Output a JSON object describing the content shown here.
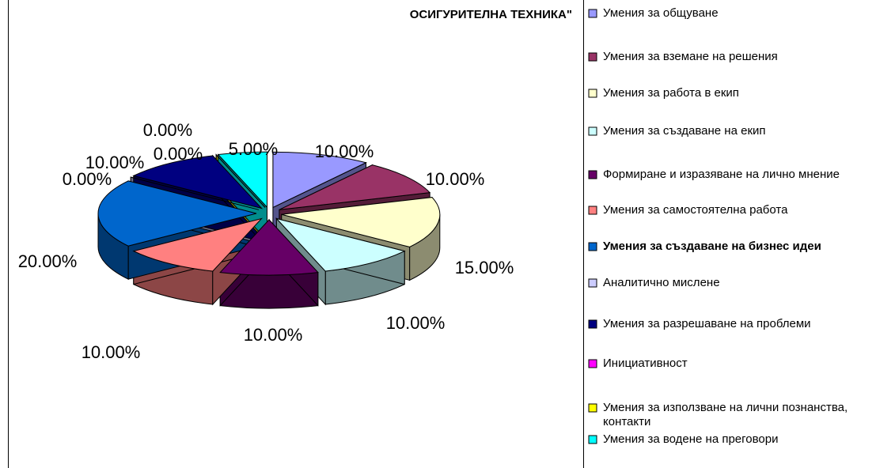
{
  "chart_data": {
    "type": "pie3d",
    "title": "ОСИГУРИТЕЛНА ТЕХНИКА\"",
    "categories": [
      "Умения за общуване",
      "Умения за вземане на решения",
      "Умения за работа в екип",
      "Умения за създаване на екип",
      "Формиране и изразяване на лично мнение",
      "Умения за самостоятелна работа",
      "Умения за създаване на бизнес идеи",
      "Аналитично мислене",
      "Умения за разрешаване на проблеми",
      "Инициативност",
      "Умения за използване на лични познанства, контакти",
      "Умения за водене на преговори"
    ],
    "values": [
      10,
      10,
      15,
      10,
      10,
      10,
      20,
      0,
      10,
      0,
      0,
      5
    ],
    "value_labels": [
      "10.00%",
      "10.00%",
      "15.00%",
      "10.00%",
      "10.00%",
      "10.00%",
      "20.00%",
      "0.00%",
      "10.00%",
      "0.00%",
      "0.00%",
      "5.00%"
    ],
    "colors": [
      "#9999ff",
      "#993366",
      "#ffffcc",
      "#ccffff",
      "#660066",
      "#ff8080",
      "#0066cc",
      "#ccccff",
      "#000080",
      "#ff00ff",
      "#ffff00",
      "#00ffff"
    ]
  }
}
